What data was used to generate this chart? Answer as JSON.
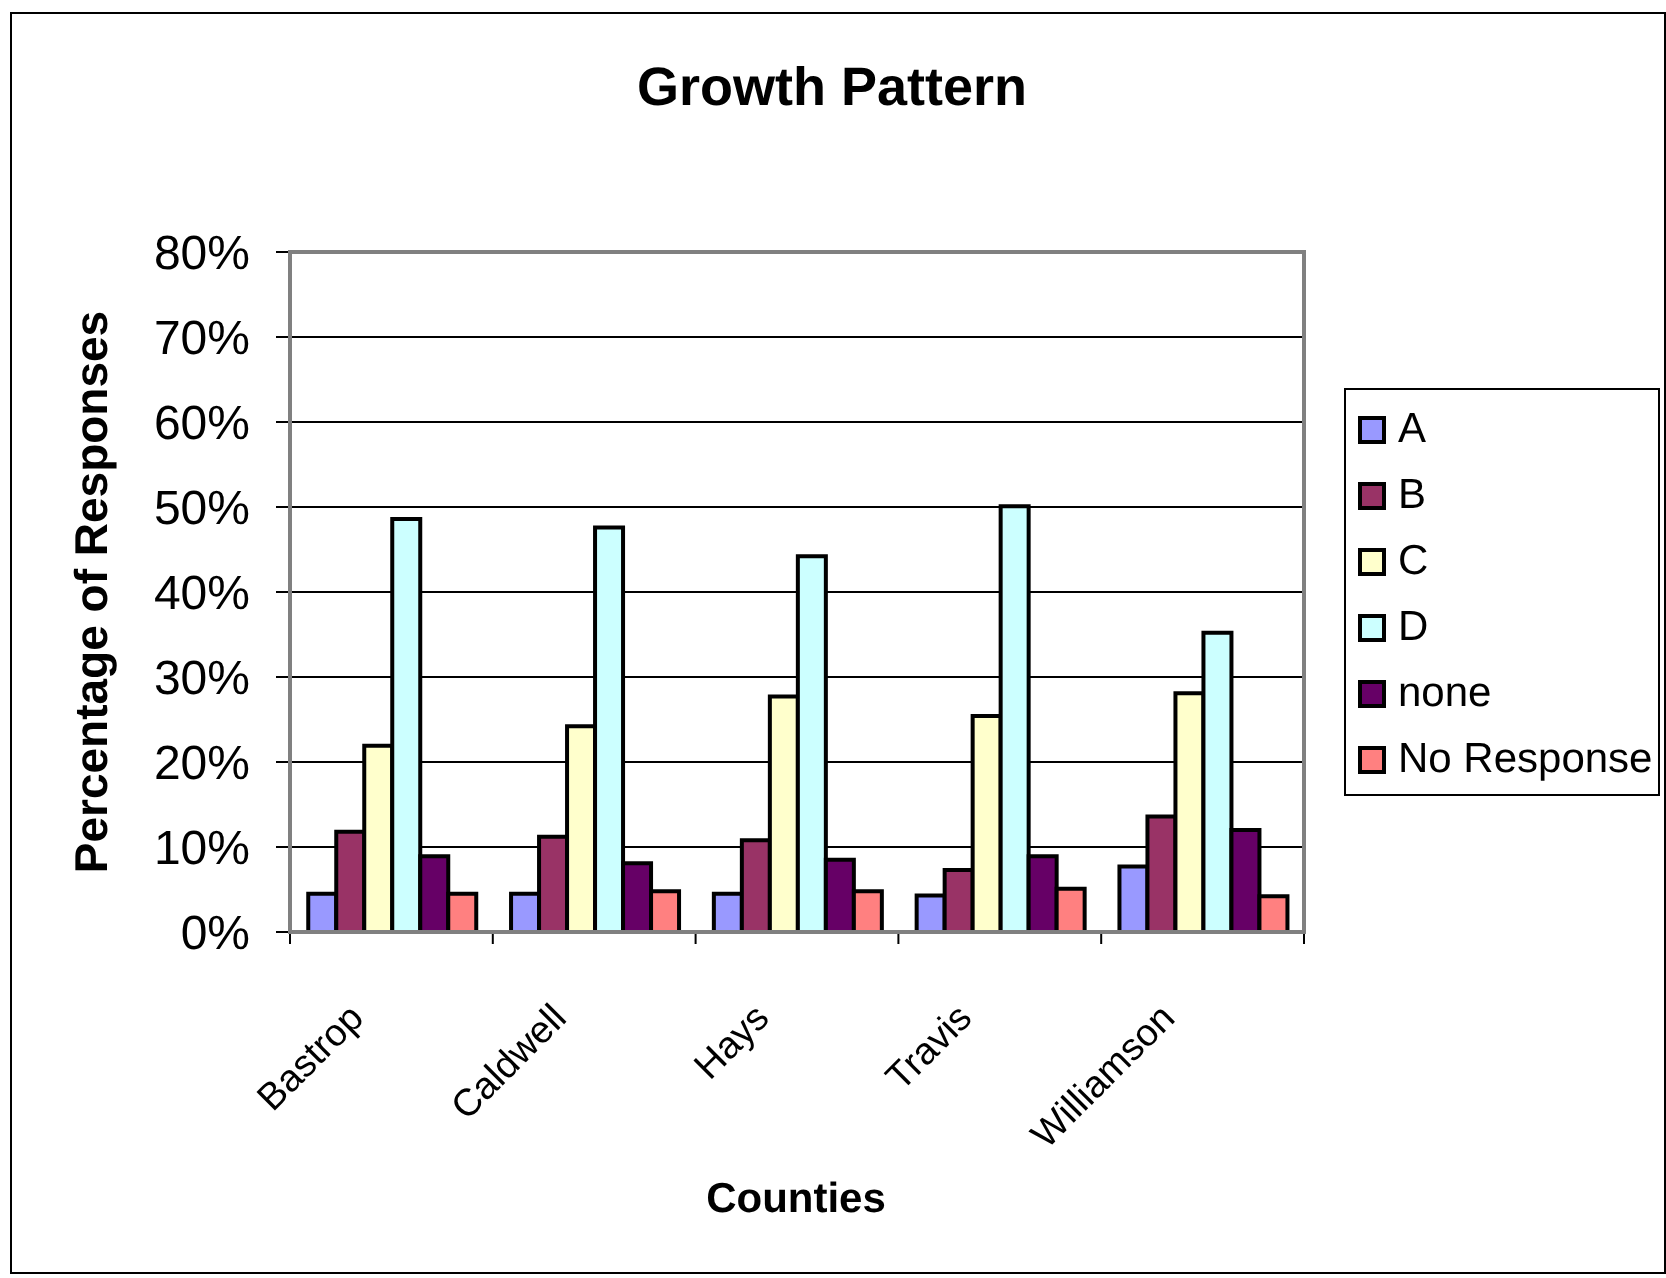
{
  "chart_data": {
    "type": "bar",
    "title": "Growth Pattern",
    "xlabel": "Counties",
    "ylabel": "Percentage of Responses",
    "categories": [
      "Bastrop",
      "Caldwell",
      "Hays",
      "Travis",
      "Williamson"
    ],
    "series": [
      {
        "name": "A",
        "color": "#9999ff",
        "values": [
          4.5,
          4.5,
          4.5,
          4.3,
          7.7
        ]
      },
      {
        "name": "B",
        "color": "#993366",
        "values": [
          11.8,
          11.2,
          10.8,
          7.3,
          13.6
        ]
      },
      {
        "name": "C",
        "color": "#ffffcc",
        "values": [
          21.9,
          24.2,
          27.7,
          25.4,
          28.1
        ]
      },
      {
        "name": "D",
        "color": "#ccffff",
        "values": [
          48.6,
          47.6,
          44.2,
          50.1,
          35.2
        ]
      },
      {
        "name": "none",
        "color": "#660066",
        "values": [
          8.9,
          8.1,
          8.5,
          8.9,
          12.0
        ]
      },
      {
        "name": "No Response",
        "color": "#ff8080",
        "values": [
          4.5,
          4.8,
          4.8,
          5.1,
          4.2
        ]
      }
    ],
    "ylim": [
      0,
      80
    ],
    "yticks": [
      {
        "value": 0,
        "label": "0%"
      },
      {
        "value": 10,
        "label": "10%"
      },
      {
        "value": 20,
        "label": "20%"
      },
      {
        "value": 30,
        "label": "30%"
      },
      {
        "value": 40,
        "label": "40%"
      },
      {
        "value": 50,
        "label": "50%"
      },
      {
        "value": 60,
        "label": "60%"
      },
      {
        "value": 70,
        "label": "70%"
      },
      {
        "value": 80,
        "label": "80%"
      }
    ],
    "grid": "y",
    "legend": "right"
  }
}
